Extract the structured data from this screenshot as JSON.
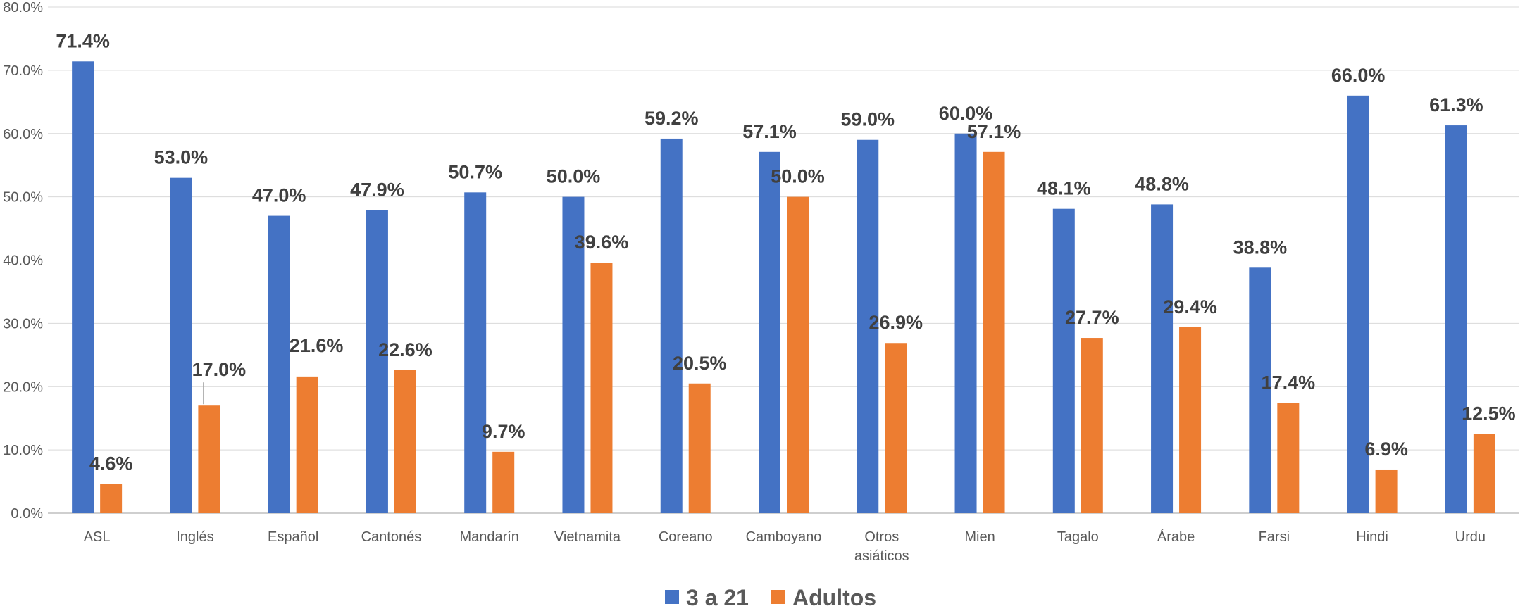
{
  "chart_data": {
    "type": "bar",
    "categories": [
      "ASL",
      "Inglés",
      "Español",
      "Cantonés",
      "Mandarín",
      "Vietnamita",
      "Coreano",
      "Camboyano",
      "Otros asiáticos",
      "Mien",
      "Tagalo",
      "Árabe",
      "Farsi",
      "Hindi",
      "Urdu"
    ],
    "series": [
      {
        "name": "3 a 21",
        "color": "#4472C4",
        "values": [
          71.4,
          53.0,
          47.0,
          47.9,
          50.7,
          50.0,
          59.2,
          57.1,
          59.0,
          60.0,
          48.1,
          48.8,
          38.8,
          66.0,
          61.3
        ],
        "labels": [
          "71.4%",
          "53.0%",
          "47.0%",
          "47.9%",
          "50.7%",
          "50.0%",
          "59.2%",
          "57.1%",
          "59.0%",
          "60.0%",
          "48.1%",
          "48.8%",
          "38.8%",
          "66.0%",
          "61.3%"
        ]
      },
      {
        "name": "Adultos",
        "color": "#ED7D31",
        "values": [
          4.6,
          17.0,
          21.6,
          22.6,
          9.7,
          39.6,
          20.5,
          50.0,
          26.9,
          57.1,
          27.7,
          29.4,
          17.4,
          6.9,
          12.5
        ],
        "labels": [
          "4.6%",
          "17.0%",
          "21.6%",
          "22.6%",
          "9.7%",
          "39.6%",
          "20.5%",
          "50.0%",
          "26.9%",
          "57.1%",
          "27.7%",
          "29.4%",
          "17.4%",
          "6.9%",
          "12.5%"
        ],
        "highlight_indices": [
          1,
          2
        ],
        "highlight_color": "#C00000"
      }
    ],
    "yticks": [
      "0.0%",
      "10.0%",
      "20.0%",
      "30.0%",
      "40.0%",
      "50.0%",
      "60.0%",
      "70.0%",
      "80.0%"
    ],
    "ylim": [
      0,
      80
    ],
    "grid": true,
    "legend_position": "bottom",
    "title": "",
    "xlabel": "",
    "ylabel": "",
    "label_color": "#404040",
    "axis_text_color": "#595959",
    "grid_color": "#D9D9D9"
  }
}
